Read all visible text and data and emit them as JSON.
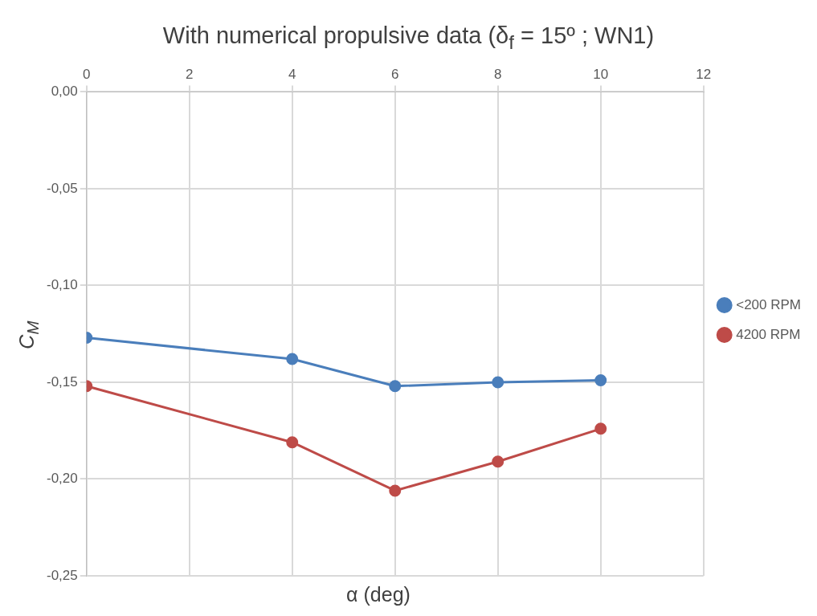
{
  "chart_data": {
    "type": "line",
    "title": "With numerical propulsive data (δ$_{f}$ = 15º ; WN1)",
    "xlabel": "α (deg)",
    "ylabel": "C$_{M}$",
    "x": [
      0,
      4,
      6,
      8,
      10
    ],
    "series": [
      {
        "name": "<200 RPM",
        "color": "#4a7ebb",
        "values": [
          -0.127,
          -0.138,
          -0.152,
          -0.15,
          -0.149
        ]
      },
      {
        "name": "4200 RPM",
        "color": "#be4b48",
        "values": [
          -0.152,
          -0.181,
          -0.206,
          -0.191,
          -0.174
        ]
      }
    ],
    "xlim": [
      0,
      12
    ],
    "xticks": [
      0,
      2,
      4,
      6,
      8,
      10,
      12
    ],
    "ylim": [
      -0.25,
      0
    ],
    "yticks": [
      {
        "value": -0.25,
        "label": "-0,25"
      },
      {
        "value": -0.2,
        "label": "-0,20"
      },
      {
        "value": -0.15,
        "label": "-0,15"
      },
      {
        "value": -0.1,
        "label": "-0,10"
      },
      {
        "value": -0.05,
        "label": "-0,05"
      },
      {
        "value": 0,
        "label": "0,00"
      }
    ],
    "grid": true,
    "legend": "right",
    "marker": "circle",
    "line_style": "solid"
  }
}
